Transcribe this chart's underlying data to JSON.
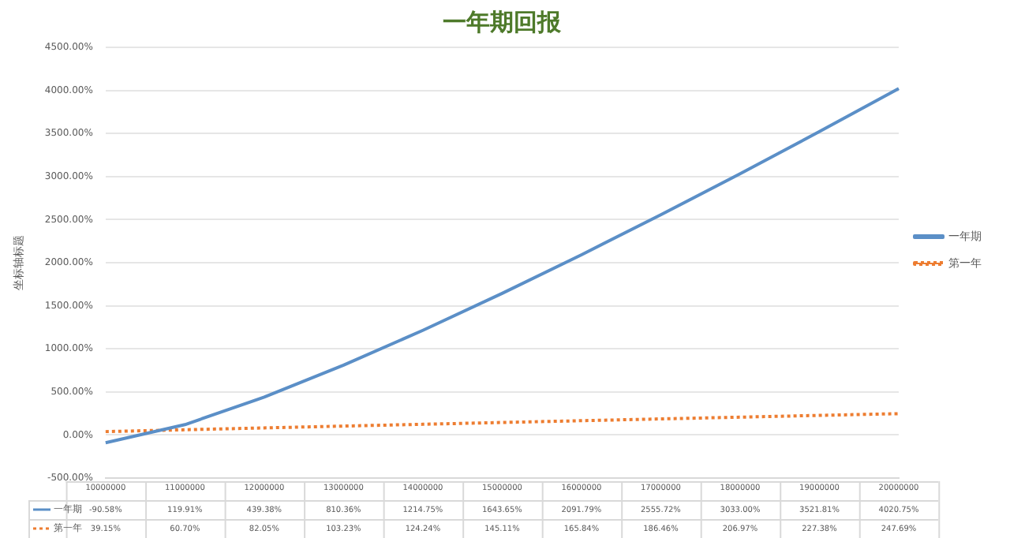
{
  "chart_data": {
    "type": "line",
    "title": "一年期回报",
    "ylabel": "坐标轴标题",
    "categories": [
      "10000000",
      "11000000",
      "12000000",
      "13000000",
      "14000000",
      "15000000",
      "16000000",
      "17000000",
      "18000000",
      "19000000",
      "20000000"
    ],
    "series": [
      {
        "name": "一年期",
        "color": "#5b8fc7",
        "line_style": "solid",
        "values": [
          -90.58,
          119.91,
          439.38,
          810.36,
          1214.75,
          1643.65,
          2091.79,
          2555.72,
          3033.0,
          3521.81,
          4020.75
        ],
        "value_labels": [
          "-90.58%",
          "119.91%",
          "439.38%",
          "810.36%",
          "1214.75%",
          "1643.65%",
          "2091.79%",
          "2555.72%",
          "3033.00%",
          "3521.81%",
          "4020.75%"
        ]
      },
      {
        "name": "第一年",
        "color": "#ed7d31",
        "line_style": "dotted",
        "values": [
          39.15,
          60.7,
          82.05,
          103.23,
          124.24,
          145.11,
          165.84,
          186.46,
          206.97,
          227.38,
          247.69
        ],
        "value_labels": [
          "39.15%",
          "60.70%",
          "82.05%",
          "103.23%",
          "124.24%",
          "145.11%",
          "165.84%",
          "186.46%",
          "206.97%",
          "227.38%",
          "247.69%"
        ]
      }
    ],
    "ylim": [
      -500,
      4500
    ],
    "yticks": [
      {
        "value": -500,
        "label": "-500.00%"
      },
      {
        "value": 0,
        "label": "0.00%"
      },
      {
        "value": 500,
        "label": "500.00%"
      },
      {
        "value": 1000,
        "label": "1000.00%"
      },
      {
        "value": 1500,
        "label": "1500.00%"
      },
      {
        "value": 2000,
        "label": "2000.00%"
      },
      {
        "value": 2500,
        "label": "2500.00%"
      },
      {
        "value": 3000,
        "label": "3000.00%"
      },
      {
        "value": 3500,
        "label": "3500.00%"
      },
      {
        "value": 4000,
        "label": "4000.00%"
      },
      {
        "value": 4500,
        "label": "4500.00%"
      }
    ],
    "grid": "y",
    "legend": "right",
    "marker": "none"
  }
}
